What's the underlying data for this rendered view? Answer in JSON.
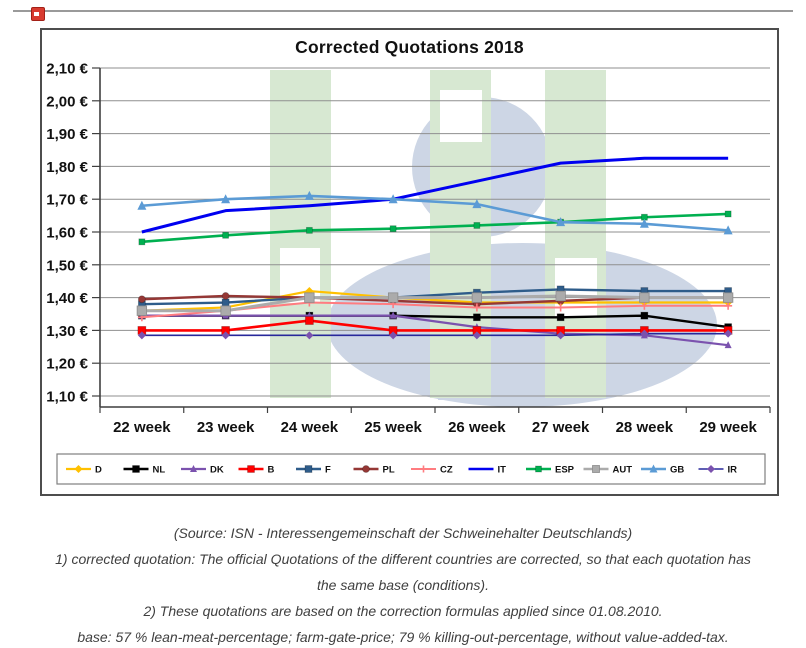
{
  "chart_data": {
    "type": "line",
    "title": "Corrected Quotations 2018",
    "xlabel": "",
    "ylabel": "",
    "currency": "EUR",
    "grid": true,
    "legend_position": "bottom",
    "ylim": [
      1.1,
      2.1
    ],
    "y_tick_labels": [
      "2,10 €",
      "2,00 €",
      "1,90 €",
      "1,80 €",
      "1,70 €",
      "1,60 €",
      "1,50 €",
      "1,40 €",
      "1,30 €",
      "1,20 €",
      "1,10 €"
    ],
    "y_tick_values": [
      2.1,
      2.0,
      1.9,
      1.8,
      1.7,
      1.6,
      1.5,
      1.4,
      1.3,
      1.2,
      1.1
    ],
    "categories": [
      "22 week",
      "23 week",
      "24 week",
      "25 week",
      "26 week",
      "27 week",
      "28 week",
      "29 week"
    ],
    "series": [
      {
        "name": "D",
        "color": "#FFC000",
        "marker": "diamond",
        "msize": 6,
        "lw": 2.2,
        "values": [
          1.36,
          1.37,
          1.42,
          1.4,
          1.385,
          1.385,
          1.385,
          1.385
        ]
      },
      {
        "name": "NL",
        "color": "#000000",
        "marker": "square",
        "msize": 7,
        "lw": 2.4,
        "values": [
          1.345,
          1.345,
          1.345,
          1.345,
          1.34,
          1.34,
          1.345,
          1.31
        ]
      },
      {
        "name": "DK",
        "color": "#7B52AE",
        "marker": "triangle",
        "msize": 6,
        "lw": 2.2,
        "values": [
          1.345,
          1.345,
          1.345,
          1.345,
          1.31,
          1.29,
          1.285,
          1.255
        ]
      },
      {
        "name": "B",
        "color": "#FF0000",
        "marker": "square",
        "msize": 8,
        "lw": 2.6,
        "values": [
          1.3,
          1.3,
          1.33,
          1.3,
          1.3,
          1.3,
          1.3,
          1.3
        ]
      },
      {
        "name": "F",
        "color": "#2E5C8A",
        "marker": "square",
        "msize": 7,
        "lw": 2.4,
        "values": [
          1.38,
          1.385,
          1.4,
          1.4,
          1.415,
          1.425,
          1.42,
          1.42
        ]
      },
      {
        "name": "PL",
        "color": "#953735",
        "marker": "circle",
        "msize": 7,
        "lw": 2.4,
        "values": [
          1.395,
          1.405,
          1.4,
          1.39,
          1.38,
          1.39,
          1.4,
          1.4
        ]
      },
      {
        "name": "CZ",
        "color": "#FF7C80",
        "marker": "plus",
        "msize": 8,
        "lw": 2.0,
        "values": [
          1.34,
          1.36,
          1.385,
          1.38,
          1.37,
          1.37,
          1.375,
          1.375
        ]
      },
      {
        "name": "IT",
        "color": "#0000F0",
        "marker": "none",
        "msize": 0,
        "lw": 3.0,
        "values": [
          1.6,
          1.665,
          1.68,
          1.7,
          1.755,
          1.81,
          1.825,
          1.825
        ]
      },
      {
        "name": "ESP",
        "color": "#00B050",
        "marker": "square",
        "msize": 6,
        "lw": 2.6,
        "values": [
          1.57,
          1.59,
          1.605,
          1.61,
          1.62,
          1.63,
          1.645,
          1.655
        ]
      },
      {
        "name": "AUT",
        "color": "#ABABAB",
        "marker": "square",
        "msize": 9.5,
        "lw": 3.0,
        "values": [
          1.36,
          1.36,
          1.4,
          1.4,
          1.4,
          1.405,
          1.4,
          1.4
        ]
      },
      {
        "name": "GB",
        "color": "#5B9BD5",
        "marker": "triangle",
        "msize": 8,
        "lw": 2.6,
        "values": [
          1.68,
          1.7,
          1.71,
          1.7,
          1.685,
          1.63,
          1.625,
          1.605
        ]
      },
      {
        "name": "IR",
        "color": "#28289B",
        "marker": "diamond",
        "msize": 6,
        "lw": 1.6,
        "marker_fill": "#7B52AE",
        "values": [
          1.285,
          1.285,
          1.285,
          1.285,
          1.285,
          1.285,
          1.29,
          1.29
        ]
      }
    ]
  },
  "footer": {
    "lines": [
      "(Source: ISN - Interessengemeinschaft der Schweinehalter Deutschlands)",
      "1) corrected quotation: The official Quotations of the different countries are corrected, so that each quotation has",
      "the same base (conditions).",
      "2) These quotations are based on the correction formulas applied since 01.08.2010.",
      "base: 57 % lean-meat-percentage; farm-gate-price; 79 % killing-out-percentage, without value-added-tax."
    ]
  }
}
